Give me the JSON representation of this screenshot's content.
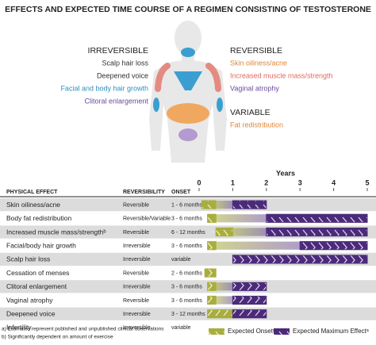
{
  "title": "EFFECTS AND EXPECTED TIME COURSE OF A REGIMEN CONSISTING OF TESTOSTERONE",
  "body_labels": {
    "irreversible": {
      "heading": "IRREVERSIBLE",
      "items": [
        {
          "text": "Scalp hair loss",
          "color": "#333333"
        },
        {
          "text": "Deepened voice",
          "color": "#333333"
        },
        {
          "text": "Facial and body hair growth",
          "color": "#2f8fbf"
        },
        {
          "text": "Clitoral enlargement",
          "color": "#6a4a9e"
        }
      ]
    },
    "reversible": {
      "heading": "REVERSIBLE",
      "items": [
        {
          "text": "Skin oiliness/acne",
          "color": "#e0873a"
        },
        {
          "text": "Increased muscle mass/strength",
          "color": "#e06a60"
        },
        {
          "text": "Vaginal atrophy",
          "color": "#6a4a9e"
        }
      ]
    },
    "variable": {
      "heading": "VARIABLE",
      "items": [
        {
          "text": "Fat redistribution",
          "color": "#e0873a"
        }
      ]
    }
  },
  "chart_data": {
    "type": "gantt",
    "xlabel": "Years",
    "xlim": [
      0,
      5
    ],
    "xticks": [
      0,
      1,
      2,
      3,
      4,
      5
    ],
    "headers": [
      "PHYSICAL EFFECT",
      "REVERSIBILITY",
      "ONSET"
    ],
    "onset_color": "#a9ad3c",
    "max_color": "#4b2a7b",
    "rows": [
      {
        "effect": "Skin oiliness/acne",
        "reversibility": "Reversible",
        "onset": "1 - 6 months",
        "onset_years": [
          0.08,
          0.5
        ],
        "max_years": [
          1,
          2
        ]
      },
      {
        "effect": "Body fat redistribution",
        "reversibility": "Reversible/Variable",
        "onset": "3 - 6 months",
        "onset_years": [
          0.25,
          0.5
        ],
        "max_years": [
          2,
          5
        ]
      },
      {
        "effect": "Increased muscle mass/strengthᵇ",
        "reversibility": "Reversible",
        "onset": "6 - 12 months",
        "onset_years": [
          0.5,
          1
        ],
        "max_years": [
          2,
          5
        ]
      },
      {
        "effect": "Facial/body hair growth",
        "reversibility": "Irreversible",
        "onset": "3 - 6 months",
        "onset_years": [
          0.25,
          0.5
        ],
        "max_years": [
          3,
          5
        ]
      },
      {
        "effect": "Scalp hair loss",
        "reversibility": "Irreversible",
        "onset": "variable",
        "onset_years": null,
        "max_years": [
          1,
          5
        ]
      },
      {
        "effect": "Cessation of menses",
        "reversibility": "Reversible",
        "onset": "2 - 6 months",
        "onset_years": [
          0.17,
          0.5
        ],
        "max_years": null
      },
      {
        "effect": "Clitoral enlargement",
        "reversibility": "Irreversible",
        "onset": "3 - 6 months",
        "onset_years": [
          0.25,
          0.5
        ],
        "max_years": [
          1,
          2
        ]
      },
      {
        "effect": "Vaginal atrophy",
        "reversibility": "Reversible",
        "onset": "3 - 6 months",
        "onset_years": [
          0.25,
          0.5
        ],
        "max_years": [
          1,
          2
        ]
      },
      {
        "effect": "Deepened voice",
        "reversibility": "Irreversible",
        "onset": "3 - 12 months",
        "onset_years": [
          0.25,
          1
        ],
        "max_years": [
          1,
          2
        ]
      },
      {
        "effect": "Infertility",
        "reversibility": "Irreversible",
        "onset": "variable",
        "onset_years": null,
        "max_years": null
      }
    ],
    "legend": [
      "Expected Onsetᵃ",
      "Expected Maximum Effectᵃ"
    ],
    "footnotes": [
      "a) Estimates represent published and unpublished clinical observations",
      "b) Significantly dependent on amount of exercise"
    ]
  }
}
